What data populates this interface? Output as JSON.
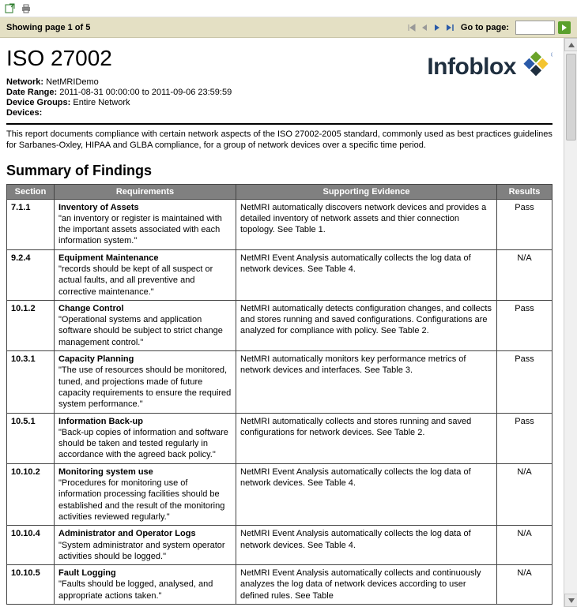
{
  "toolbar": {
    "export_icon": "export-icon",
    "print_icon": "print-icon"
  },
  "pager": {
    "showing_text": "Showing page  1  of  5",
    "goto_label": "Go to page:",
    "goto_value": ""
  },
  "report": {
    "title": "ISO 27002",
    "logo_text": "Infoblox",
    "meta": {
      "network_label": "Network:",
      "network_value": "NetMRIDemo",
      "daterange_label": "Date Range:",
      "daterange_value": "2011-08-31 00:00:00 to 2011-09-06 23:59:59",
      "devicegroups_label": "Device Groups:",
      "devicegroups_value": "Entire Network",
      "devices_label": "Devices:",
      "devices_value": ""
    },
    "intro": "This report documents compliance with certain network aspects of the ISO 27002-2005 standard, commonly used as best practices guidelines for Sarbanes-Oxley, HIPAA and GLBA compliance, for a group of network devices over a specific time period.",
    "summary_heading": "Summary of Findings",
    "headers": {
      "section": "Section",
      "requirements": "Requirements",
      "evidence": "Supporting Evidence",
      "results": "Results"
    },
    "rows": [
      {
        "section": "7.1.1",
        "req_title": "Inventory of Assets",
        "req_body": "\"an inventory or register is maintained with the important assets associated with each information system.\"",
        "evidence": "NetMRI automatically discovers network devices and provides a detailed inventory of network assets and thier connection topology.  See Table 1.",
        "result": "Pass"
      },
      {
        "section": "9.2.4",
        "req_title": "Equipment Maintenance",
        "req_body": "\"records should be kept of all suspect or actual faults, and all preventive and corrective maintenance.\"",
        "evidence": "NetMRI Event Analysis automatically collects the log data of network devices.  See Table 4.",
        "result": "N/A"
      },
      {
        "section": "10.1.2",
        "req_title": "Change Control",
        "req_body": "\"Operational systems and application software should be subject to strict change management control.\"",
        "evidence": "NetMRI automatically detects configuration changes, and collects and stores running and saved configurations.  Configurations are analyzed for compliance with policy.  See Table 2.",
        "result": "Pass"
      },
      {
        "section": "10.3.1",
        "req_title": "Capacity Planning",
        "req_body": "\"The use of resources should be monitored, tuned, and projections made of future capacity requirements to ensure the required system performance.\"",
        "evidence": "NetMRI automatically monitors key performance metrics of network devices and interfaces.  See Table 3.",
        "result": "Pass"
      },
      {
        "section": "10.5.1",
        "req_title": "Information Back-up",
        "req_body": "\"Back-up copies of information and software should be taken and tested regularly in accordance with the agreed back policy.\"",
        "evidence": "NetMRI automatically collects and stores running and saved configurations for network devices.  See Table 2.",
        "result": "Pass"
      },
      {
        "section": "10.10.2",
        "req_title": "Monitoring system use",
        "req_body": "\"Procedures for monitoring use of information processing facilities should be established and the result of the monitoring activities reviewed regularly.\"",
        "evidence": "NetMRI Event Analysis automatically collects the log data of network devices.  See Table 4.",
        "result": "N/A"
      },
      {
        "section": "10.10.4",
        "req_title": "Administrator and Operator Logs",
        "req_body": "\"System administrator and system operator activities should be logged.\"",
        "evidence": "NetMRI Event Analysis automatically collects the log data of network devices.  See Table 4.",
        "result": "N/A"
      },
      {
        "section": "10.10.5",
        "req_title": "Fault Logging",
        "req_body": "\"Faults should be logged, analysed, and appropriate actions taken.\"",
        "evidence": "NetMRI Event Analysis automatically collects and continuously analyzes the log data of network devices according to user defined rules.  See Table",
        "result": "N/A"
      }
    ]
  },
  "colors": {
    "pager_bg": "#e4e0c4",
    "th_bg": "#808080",
    "th_fg": "#ffffff",
    "border": "#444444",
    "go_btn": "#5aa02c",
    "logo_accent1": "#6aa32a",
    "logo_accent2": "#2a5aa8"
  }
}
